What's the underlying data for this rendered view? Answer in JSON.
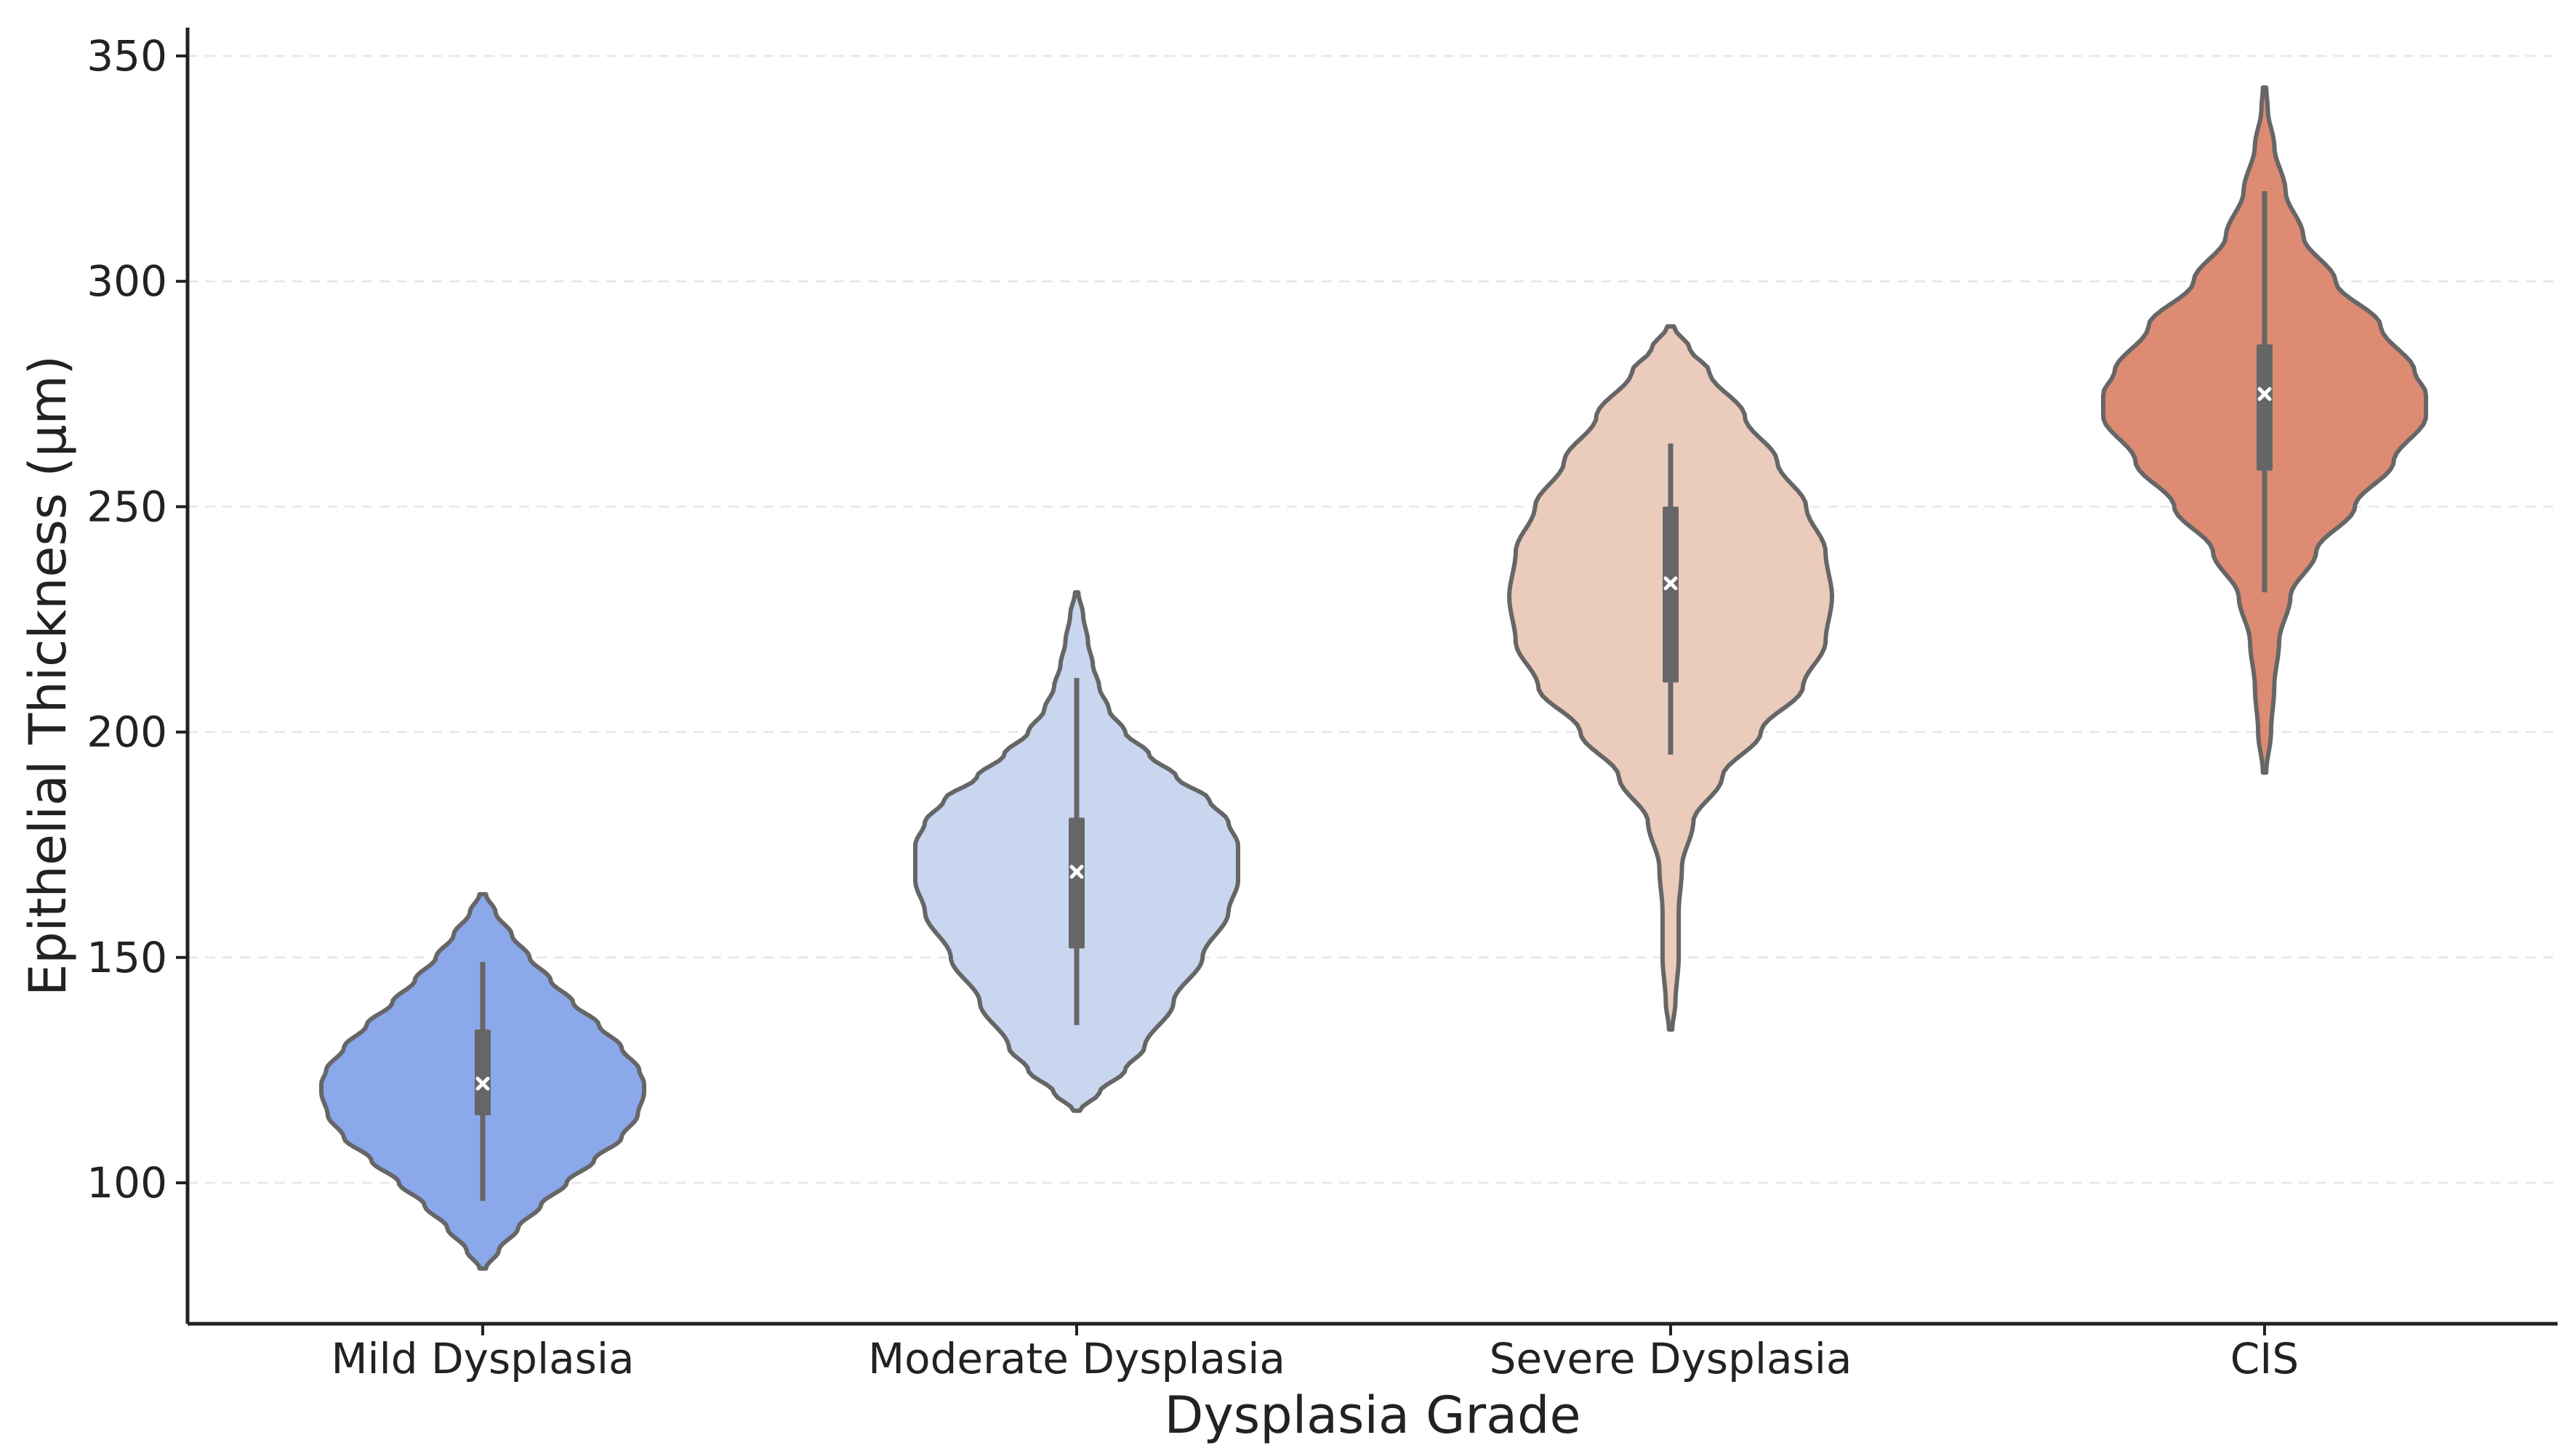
{
  "chart_data": {
    "type": "violin",
    "xlabel": "Dysplasia Grade",
    "ylabel": "Epithelial Thickness (µm)",
    "ylim": [
      68,
      356
    ],
    "yticks": [
      100,
      150,
      200,
      250,
      300,
      350
    ],
    "grid": "horizontal dashed",
    "categories": [
      "Mild Dysplasia",
      "Moderate Dysplasia",
      "Severe Dysplasia",
      "CIS"
    ],
    "colors": [
      "#8aa8ea",
      "#c8d6f0",
      "#ebcbbc",
      "#dd8b72"
    ],
    "series": [
      {
        "name": "Mild Dysplasia",
        "min_extent": 81,
        "max_extent": 164,
        "whisker_low": 96,
        "q1": 115,
        "median": 122,
        "q3": 134,
        "whisker_high": 149,
        "profile": [
          [
            81,
            0.02
          ],
          [
            85,
            0.1
          ],
          [
            90,
            0.22
          ],
          [
            95,
            0.36
          ],
          [
            100,
            0.52
          ],
          [
            105,
            0.69
          ],
          [
            110,
            0.86
          ],
          [
            115,
            0.96
          ],
          [
            120,
            1.0
          ],
          [
            122,
            1.0
          ],
          [
            125,
            0.97
          ],
          [
            130,
            0.86
          ],
          [
            135,
            0.72
          ],
          [
            140,
            0.56
          ],
          [
            145,
            0.42
          ],
          [
            150,
            0.29
          ],
          [
            155,
            0.18
          ],
          [
            160,
            0.08
          ],
          [
            164,
            0.02
          ]
        ]
      },
      {
        "name": "Moderate Dysplasia",
        "min_extent": 116,
        "max_extent": 231,
        "whisker_low": 135,
        "q1": 152,
        "median": 169,
        "q3": 181,
        "whisker_high": 212,
        "profile": [
          [
            116,
            0.02
          ],
          [
            120,
            0.14
          ],
          [
            125,
            0.3
          ],
          [
            130,
            0.42
          ],
          [
            140,
            0.6
          ],
          [
            150,
            0.78
          ],
          [
            160,
            0.94
          ],
          [
            167,
            1.0
          ],
          [
            175,
            1.0
          ],
          [
            180,
            0.94
          ],
          [
            185,
            0.82
          ],
          [
            190,
            0.62
          ],
          [
            195,
            0.45
          ],
          [
            200,
            0.3
          ],
          [
            205,
            0.2
          ],
          [
            210,
            0.14
          ],
          [
            215,
            0.1
          ],
          [
            220,
            0.07
          ],
          [
            226,
            0.04
          ],
          [
            231,
            0.01
          ]
        ]
      },
      {
        "name": "Severe Dysplasia",
        "min_extent": 134,
        "max_extent": 290,
        "whisker_low": 195,
        "q1": 211,
        "median": 233,
        "q3": 250,
        "whisker_high": 264,
        "profile": [
          [
            134,
            0.01
          ],
          [
            140,
            0.03
          ],
          [
            150,
            0.05
          ],
          [
            160,
            0.05
          ],
          [
            170,
            0.07
          ],
          [
            180,
            0.14
          ],
          [
            190,
            0.32
          ],
          [
            200,
            0.56
          ],
          [
            210,
            0.82
          ],
          [
            220,
            0.96
          ],
          [
            230,
            1.0
          ],
          [
            240,
            0.96
          ],
          [
            250,
            0.84
          ],
          [
            260,
            0.66
          ],
          [
            270,
            0.46
          ],
          [
            280,
            0.24
          ],
          [
            285,
            0.12
          ],
          [
            290,
            0.02
          ]
        ]
      },
      {
        "name": "CIS",
        "min_extent": 191,
        "max_extent": 343,
        "whisker_low": 231,
        "q1": 258,
        "median": 275,
        "q3": 286,
        "whisker_high": 320,
        "profile": [
          [
            191,
            0.01
          ],
          [
            200,
            0.04
          ],
          [
            210,
            0.06
          ],
          [
            220,
            0.09
          ],
          [
            230,
            0.16
          ],
          [
            240,
            0.32
          ],
          [
            250,
            0.56
          ],
          [
            260,
            0.8
          ],
          [
            270,
            1.0
          ],
          [
            275,
            1.0
          ],
          [
            280,
            0.93
          ],
          [
            290,
            0.72
          ],
          [
            300,
            0.44
          ],
          [
            310,
            0.24
          ],
          [
            320,
            0.13
          ],
          [
            330,
            0.06
          ],
          [
            338,
            0.02
          ],
          [
            343,
            0.01
          ]
        ]
      }
    ]
  }
}
